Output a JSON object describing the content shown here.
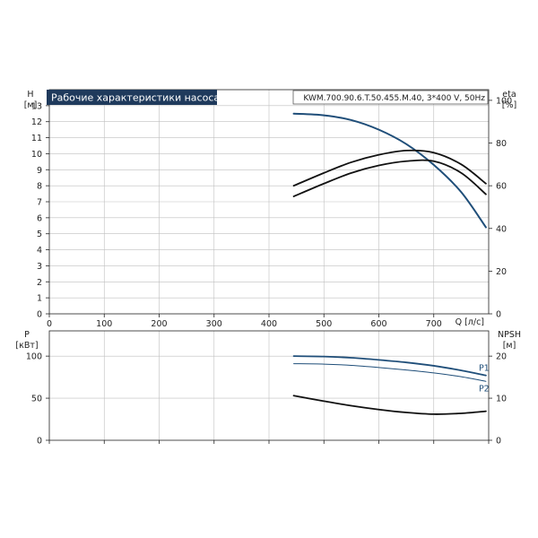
{
  "chart_data": [
    {
      "type": "line",
      "title": "Рабочие характеристики насоса",
      "info": "KWM.700.90.6.T.50.455.M.40, 3*400 V, 50Hz",
      "xlabel": "Q [л/с]",
      "x_ticks": [
        0,
        100,
        200,
        300,
        400,
        500,
        600,
        700
      ],
      "xlim": [
        0,
        800
      ],
      "left_axis": {
        "label": "H",
        "unit": "[м]",
        "ylim": [
          0,
          14
        ],
        "ticks": [
          0,
          1,
          2,
          3,
          4,
          5,
          6,
          7,
          8,
          9,
          10,
          11,
          12,
          13
        ]
      },
      "right_axis": {
        "label": "eta",
        "unit": "[%]",
        "ylim": [
          0,
          105
        ],
        "ticks": [
          0,
          20,
          40,
          60,
          80,
          100
        ]
      },
      "grid": true,
      "series": [
        {
          "axis": "left",
          "color": "#1f4e79",
          "width": 2,
          "x": [
            445,
            500,
            550,
            600,
            650,
            700,
            750,
            795
          ],
          "y": [
            12.5,
            12.4,
            12.1,
            11.5,
            10.6,
            9.3,
            7.6,
            5.4
          ]
        },
        {
          "axis": "right",
          "color": "#111111",
          "width": 1.8,
          "x": [
            445,
            500,
            550,
            600,
            650,
            700,
            750,
            795
          ],
          "y": [
            60,
            66,
            71,
            74.5,
            76.5,
            75.5,
            70,
            61
          ]
        },
        {
          "axis": "right",
          "color": "#111111",
          "width": 1.8,
          "x": [
            445,
            500,
            550,
            600,
            650,
            700,
            750,
            795
          ],
          "y": [
            55,
            61,
            66,
            69.5,
            71.5,
            71.5,
            66,
            56
          ]
        }
      ]
    },
    {
      "type": "line",
      "xlim": [
        0,
        800
      ],
      "left_axis": {
        "label": "P",
        "unit": "[кВт]",
        "ylim": [
          0,
          130
        ],
        "ticks": [
          0,
          50,
          100
        ]
      },
      "right_axis": {
        "label": "NPSH",
        "unit": "[м]",
        "ylim": [
          0,
          26
        ],
        "ticks": [
          0,
          10,
          20
        ]
      },
      "grid": true,
      "series": [
        {
          "name": "P1",
          "axis": "left",
          "color": "#1f4e79",
          "width": 1.8,
          "x": [
            445,
            500,
            550,
            600,
            650,
            700,
            750,
            795
          ],
          "y": [
            100,
            99.5,
            98,
            95.5,
            92.5,
            88.5,
            83,
            77
          ]
        },
        {
          "name": "P2",
          "axis": "left",
          "color": "#1f4e79",
          "width": 1,
          "x": [
            445,
            500,
            550,
            600,
            650,
            700,
            750,
            795
          ],
          "y": [
            91,
            90.5,
            89,
            86.5,
            83.5,
            80,
            75.5,
            70
          ]
        },
        {
          "axis": "right",
          "color": "#111111",
          "width": 1.8,
          "x": [
            445,
            500,
            550,
            600,
            650,
            700,
            750,
            795
          ],
          "y": [
            10.6,
            9.3,
            8.2,
            7.3,
            6.6,
            6.2,
            6.4,
            6.9
          ]
        }
      ]
    }
  ]
}
